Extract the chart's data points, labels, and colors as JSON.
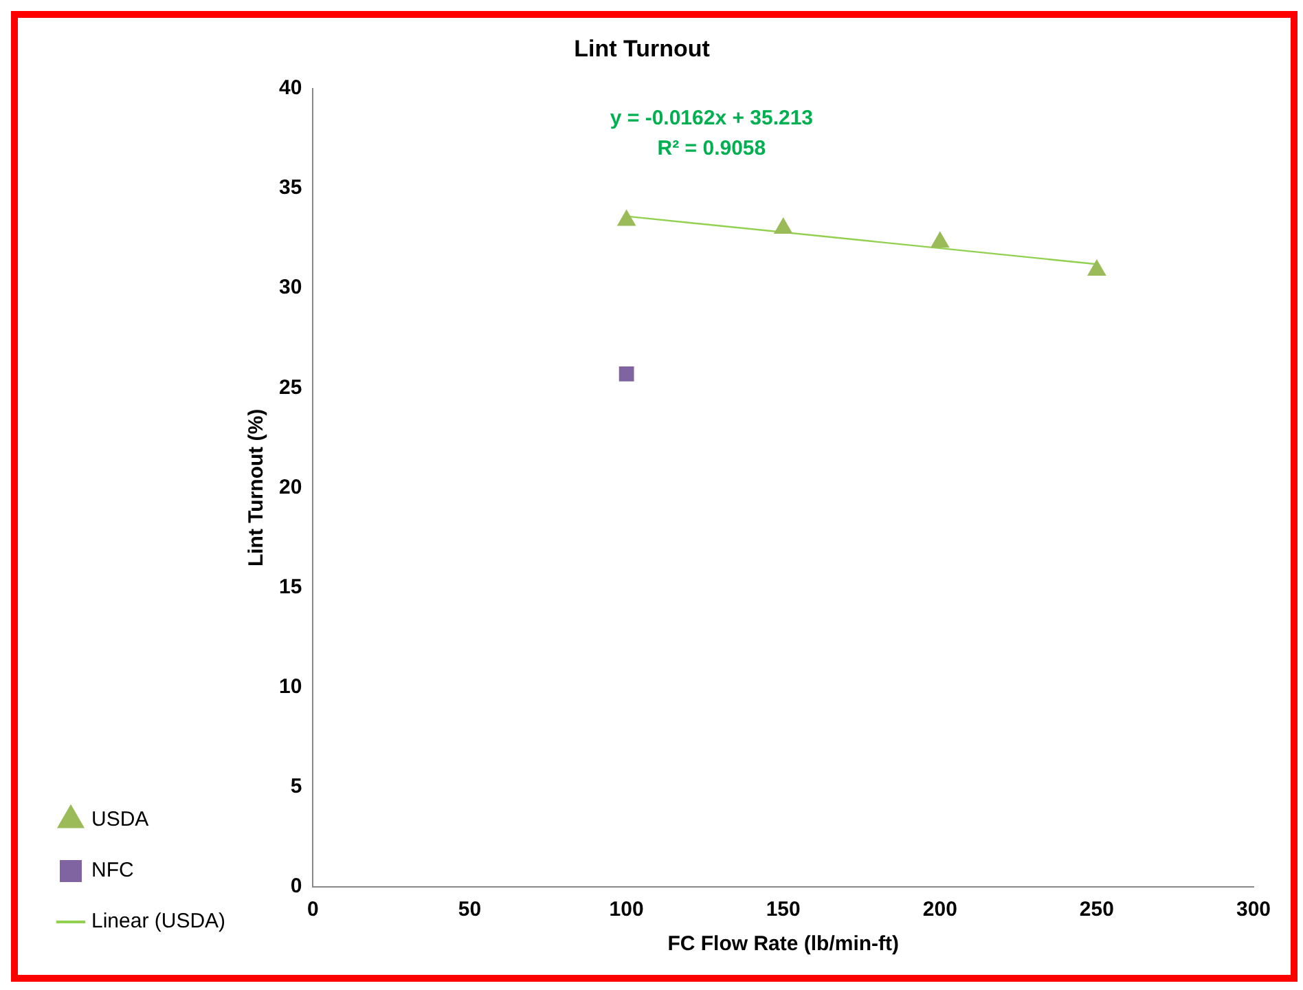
{
  "chart_data": {
    "type": "scatter",
    "title": "Lint Turnout",
    "xlabel": "FC Flow Rate (lb/min-ft)",
    "ylabel": "Lint Turnout (%)",
    "xlim": [
      0,
      300
    ],
    "xticks": [
      0,
      50,
      100,
      150,
      200,
      250,
      300
    ],
    "ylim": [
      0,
      40
    ],
    "yticks": [
      0,
      5,
      10,
      15,
      20,
      25,
      30,
      35,
      40
    ],
    "grid": false,
    "legend": "left",
    "series": [
      {
        "name": "USDA",
        "marker": "triangle",
        "color": "#9bbb59",
        "x": [
          100,
          150,
          200,
          250
        ],
        "values": [
          33.4,
          33.0,
          32.3,
          30.9
        ]
      },
      {
        "name": "NFC",
        "marker": "square",
        "color": "#8064a2",
        "x": [
          100
        ],
        "values": [
          25.7
        ]
      },
      {
        "name": "Linear (USDA)",
        "type": "line",
        "marker": "none",
        "line_style": "solid",
        "color": "#92d050",
        "x": [
          100,
          250
        ],
        "values": [
          33.6,
          31.2
        ]
      }
    ],
    "annotations": [
      "y = -0.0162x + 35.213",
      "R² = 0.9058"
    ]
  }
}
